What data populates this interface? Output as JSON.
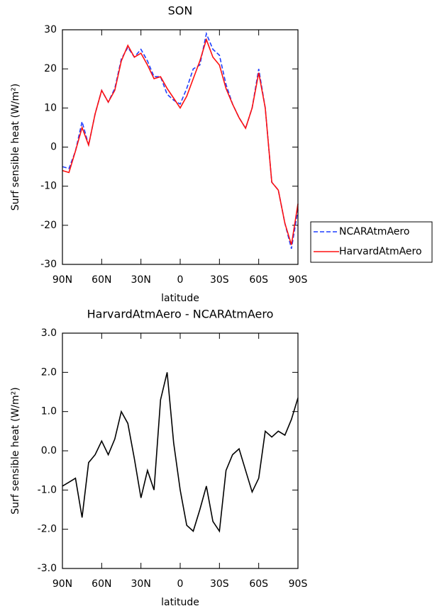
{
  "chart_data": [
    {
      "type": "line",
      "title": "SON",
      "xlabel": "latitude",
      "ylabel": "Surf sensible heat (W/m²)",
      "x": [
        90,
        85,
        80,
        75,
        70,
        65,
        60,
        55,
        50,
        45,
        40,
        35,
        30,
        25,
        20,
        15,
        10,
        5,
        0,
        -5,
        -10,
        -15,
        -20,
        -25,
        -30,
        -35,
        -40,
        -45,
        -50,
        -55,
        -60,
        -65,
        -70,
        -75,
        -80,
        -85,
        -90
      ],
      "series": [
        {
          "name": "NCARAtmAero",
          "color": "#1f3fff",
          "dash": true,
          "values": [
            -5,
            -5.5,
            -1,
            6.5,
            0.5,
            8.5,
            14.5,
            11.5,
            15,
            22.5,
            25.5,
            23,
            25,
            22,
            18,
            18,
            13.5,
            12,
            11,
            15,
            20,
            21,
            29,
            25,
            23.5,
            16,
            11,
            7.5,
            4.8,
            10,
            20,
            10,
            -9,
            -11,
            -19.5,
            -26,
            -16
          ]
        },
        {
          "name": "HarvardAtmAero",
          "color": "#ff1010",
          "dash": false,
          "values": [
            -6,
            -6.5,
            -1,
            5,
            0.5,
            8.5,
            14.5,
            11.5,
            14.5,
            22,
            26,
            23,
            24,
            21,
            17.5,
            18,
            15,
            12.5,
            10,
            13,
            17.5,
            22,
            27.5,
            23,
            21,
            15,
            11,
            7.5,
            4.8,
            10,
            19,
            10,
            -9,
            -11,
            -19.5,
            -25,
            -14.5
          ]
        }
      ],
      "xlim": [
        90,
        -90
      ],
      "xticks": [
        {
          "value": 90,
          "label": "90N"
        },
        {
          "value": 60,
          "label": "60N"
        },
        {
          "value": 30,
          "label": "30N"
        },
        0,
        {
          "value": -30,
          "label": "30S"
        },
        {
          "value": -60,
          "label": "60S"
        },
        {
          "value": -90,
          "label": "90S"
        }
      ],
      "ylim": [
        -30,
        30
      ],
      "yticks": [
        -30,
        -20,
        -10,
        0,
        10,
        20,
        30
      ],
      "legend": "right"
    },
    {
      "type": "line",
      "title": "HarvardAtmAero - NCARAtmAero",
      "xlabel": "latitude",
      "ylabel": "Surf sensible heat (W/m²)",
      "x": [
        90,
        85,
        80,
        75,
        70,
        65,
        60,
        55,
        50,
        45,
        40,
        35,
        30,
        25,
        20,
        15,
        10,
        5,
        0,
        -5,
        -10,
        -15,
        -20,
        -25,
        -30,
        -35,
        -40,
        -45,
        -50,
        -55,
        -60,
        -65,
        -70,
        -75,
        -80,
        -85,
        -90
      ],
      "series": [
        {
          "color": "#000000",
          "dash": false,
          "values": [
            -0.9,
            -0.8,
            -0.7,
            -1.7,
            -0.3,
            -0.1,
            0.25,
            -0.1,
            0.3,
            1.0,
            0.7,
            -0.2,
            -1.2,
            -0.5,
            -1.0,
            1.3,
            2.0,
            0.2,
            -1.0,
            -1.9,
            -2.05,
            -1.5,
            -0.9,
            -1.8,
            -2.05,
            -0.5,
            -0.1,
            0.05,
            -0.5,
            -1.05,
            -0.7,
            0.5,
            0.35,
            0.5,
            0.4,
            0.8,
            1.35
          ]
        }
      ],
      "xlim": [
        90,
        -90
      ],
      "xticks": [
        {
          "value": 90,
          "label": "90N"
        },
        {
          "value": 60,
          "label": "60N"
        },
        {
          "value": 30,
          "label": "30N"
        },
        0,
        {
          "value": -30,
          "label": "30S"
        },
        {
          "value": -60,
          "label": "60S"
        },
        {
          "value": -90,
          "label": "90S"
        }
      ],
      "ylim": [
        -3,
        3
      ],
      "yticks": [
        {
          "value": -3,
          "label": "-3.0"
        },
        {
          "value": -2,
          "label": "-2.0"
        },
        {
          "value": -1,
          "label": "-1.0"
        },
        {
          "value": 0,
          "label": "0.0"
        },
        {
          "value": 1,
          "label": "1.0"
        },
        {
          "value": 2,
          "label": "2.0"
        },
        {
          "value": 3,
          "label": "3.0"
        }
      ]
    }
  ]
}
